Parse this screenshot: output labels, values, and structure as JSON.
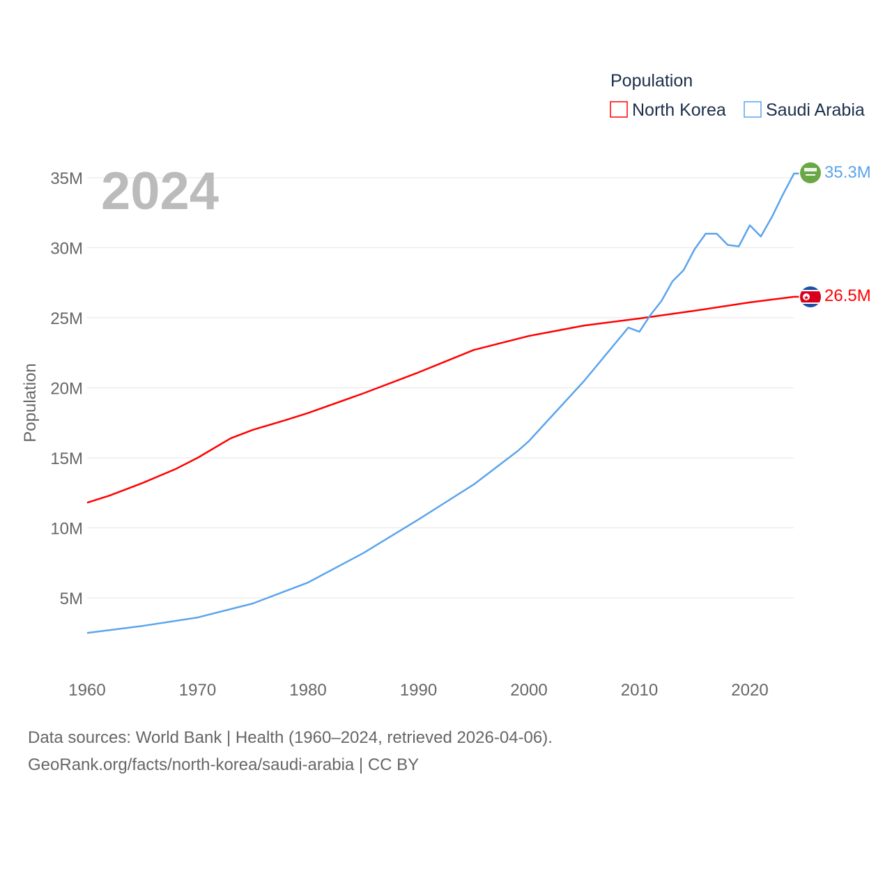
{
  "chart_data": {
    "type": "line",
    "title": "",
    "year_overlay": "2024",
    "ylabel": "Population",
    "xlabel": "",
    "xlim": [
      1960,
      2024
    ],
    "ylim": [
      0,
      37000000
    ],
    "x_ticks": [
      "1960",
      "1970",
      "1980",
      "1990",
      "2000",
      "2010",
      "2020"
    ],
    "y_ticks": [
      {
        "value": 5000000,
        "label": "5M"
      },
      {
        "value": 10000000,
        "label": "10M"
      },
      {
        "value": 15000000,
        "label": "15M"
      },
      {
        "value": 20000000,
        "label": "20M"
      },
      {
        "value": 25000000,
        "label": "25M"
      },
      {
        "value": 30000000,
        "label": "30M"
      },
      {
        "value": 35000000,
        "label": "35M"
      }
    ],
    "grid": true,
    "legend": {
      "title": "Population",
      "position": "top-right"
    },
    "series": [
      {
        "name": "North Korea",
        "color": "#ff0000",
        "end_label": "26.5M",
        "flag": "north-korea-flag",
        "points": [
          [
            1960,
            11.8
          ],
          [
            1962,
            12.3
          ],
          [
            1965,
            13.2
          ],
          [
            1968,
            14.2
          ],
          [
            1970,
            15.0
          ],
          [
            1973,
            16.4
          ],
          [
            1975,
            17.0
          ],
          [
            1978,
            17.7
          ],
          [
            1980,
            18.2
          ],
          [
            1985,
            19.6
          ],
          [
            1990,
            21.1
          ],
          [
            1995,
            22.7
          ],
          [
            2000,
            23.7
          ],
          [
            2002,
            24.0
          ],
          [
            2005,
            24.45
          ],
          [
            2010,
            24.95
          ],
          [
            2015,
            25.5
          ],
          [
            2020,
            26.1
          ],
          [
            2024,
            26.5
          ]
        ]
      },
      {
        "name": "Saudi Arabia",
        "color": "#5ba4ec",
        "end_label": "35.3M",
        "flag": "saudi-arabia-flag",
        "points": [
          [
            1960,
            2.5
          ],
          [
            1965,
            3.0
          ],
          [
            1970,
            3.6
          ],
          [
            1975,
            4.6
          ],
          [
            1980,
            6.1
          ],
          [
            1985,
            8.2
          ],
          [
            1990,
            10.6
          ],
          [
            1995,
            13.1
          ],
          [
            1999,
            15.5
          ],
          [
            2000,
            16.2
          ],
          [
            2005,
            20.5
          ],
          [
            2009,
            24.3
          ],
          [
            2010,
            24.0
          ],
          [
            2011,
            25.2
          ],
          [
            2012,
            26.2
          ],
          [
            2013,
            27.6
          ],
          [
            2014,
            28.4
          ],
          [
            2015,
            29.9
          ],
          [
            2016,
            31.0
          ],
          [
            2017,
            31.0
          ],
          [
            2018,
            30.2
          ],
          [
            2019,
            30.1
          ],
          [
            2020,
            31.6
          ],
          [
            2021,
            30.8
          ],
          [
            2022,
            32.2
          ],
          [
            2023,
            33.8
          ],
          [
            2024,
            35.3
          ]
        ]
      }
    ]
  },
  "footer": {
    "line1": "Data sources: World Bank | Health (1960–2024, retrieved 2026-04-06).",
    "line2": "GeoRank.org/facts/north-korea/saudi-arabia | CC BY"
  }
}
